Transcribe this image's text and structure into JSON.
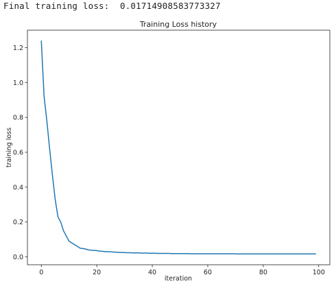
{
  "output": {
    "final_loss_label": "Final training loss:",
    "final_loss_value": "0.01714908583773327"
  },
  "chart_data": {
    "type": "line",
    "title": "Training Loss history",
    "xlabel": "iteration",
    "ylabel": "training loss",
    "xlim": [
      -5,
      104
    ],
    "ylim": [
      -0.045,
      1.3
    ],
    "xticks": [
      0,
      20,
      40,
      60,
      80,
      100
    ],
    "yticks": [
      0.0,
      0.2,
      0.4,
      0.6,
      0.8,
      1.0,
      1.2
    ],
    "xtick_labels": [
      "0",
      "20",
      "40",
      "60",
      "80",
      "100"
    ],
    "ytick_labels": [
      "0.0",
      "0.2",
      "0.4",
      "0.6",
      "0.8",
      "1.0",
      "1.2"
    ],
    "grid": false,
    "line_color": "#1f77b4",
    "series": [
      {
        "x": [
          0,
          1,
          2,
          3,
          4,
          5,
          6,
          7,
          8,
          9,
          10,
          11,
          12,
          13,
          14,
          15,
          16,
          17,
          18,
          19,
          20,
          21,
          22,
          23,
          24,
          25,
          26,
          27,
          28,
          29,
          30,
          31,
          32,
          33,
          34,
          35,
          36,
          37,
          38,
          39,
          40,
          41,
          42,
          43,
          44,
          45,
          46,
          47,
          48,
          49,
          50,
          51,
          52,
          53,
          54,
          55,
          56,
          57,
          58,
          59,
          60,
          61,
          62,
          63,
          64,
          65,
          66,
          67,
          68,
          69,
          70,
          71,
          72,
          73,
          74,
          75,
          76,
          77,
          78,
          79,
          80,
          81,
          82,
          83,
          84,
          85,
          86,
          87,
          88,
          89,
          90,
          91,
          92,
          93,
          94,
          95,
          96,
          97,
          98,
          99
        ],
        "values": [
          1.24,
          0.92,
          0.78,
          0.62,
          0.47,
          0.33,
          0.23,
          0.2,
          0.15,
          0.12,
          0.09,
          0.08,
          0.07,
          0.06,
          0.05,
          0.048,
          0.045,
          0.04,
          0.038,
          0.037,
          0.036,
          0.033,
          0.032,
          0.03,
          0.03,
          0.029,
          0.028,
          0.027,
          0.026,
          0.025,
          0.025,
          0.024,
          0.024,
          0.023,
          0.023,
          0.023,
          0.022,
          0.022,
          0.022,
          0.021,
          0.021,
          0.021,
          0.02,
          0.02,
          0.02,
          0.02,
          0.02,
          0.019,
          0.019,
          0.019,
          0.019,
          0.019,
          0.019,
          0.019,
          0.018,
          0.018,
          0.018,
          0.018,
          0.018,
          0.018,
          0.018,
          0.018,
          0.018,
          0.018,
          0.018,
          0.018,
          0.018,
          0.018,
          0.018,
          0.018,
          0.018,
          0.017,
          0.017,
          0.017,
          0.017,
          0.017,
          0.017,
          0.017,
          0.017,
          0.017,
          0.017,
          0.017,
          0.017,
          0.017,
          0.017,
          0.017,
          0.017,
          0.017,
          0.017,
          0.017,
          0.017,
          0.017,
          0.017,
          0.017,
          0.017,
          0.017,
          0.017,
          0.017,
          0.017,
          0.017
        ]
      }
    ]
  }
}
